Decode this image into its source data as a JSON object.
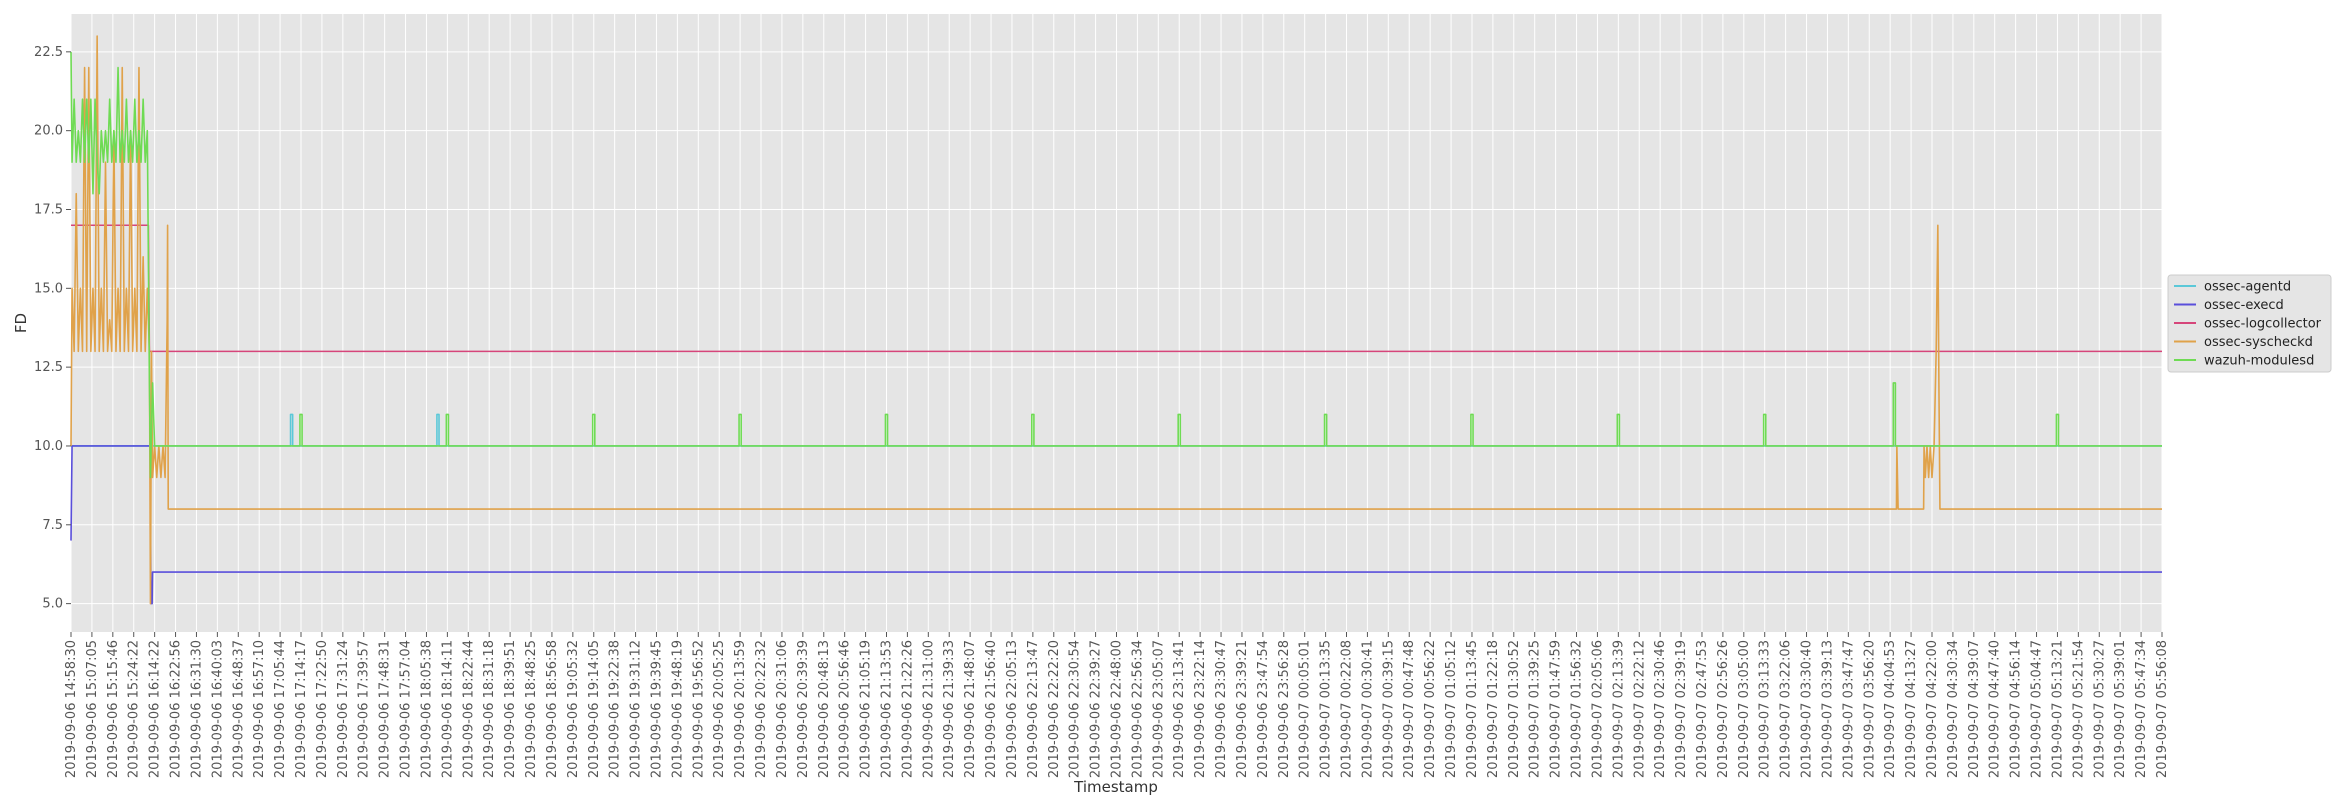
{
  "chart_data": {
    "type": "line",
    "title": "",
    "xlabel": "Timestamp",
    "ylabel": "FD",
    "ylim": [
      4.1,
      23.7
    ],
    "yticks": [
      5.0,
      7.5,
      10.0,
      12.5,
      15.0,
      17.5,
      20.0,
      22.5
    ],
    "ytick_labels": [
      "5.0",
      "7.5",
      "10.0",
      "12.5",
      "15.0",
      "17.5",
      "20.0",
      "22.5"
    ],
    "grid": true,
    "legend_position": "center-right",
    "x_tick_labels": [
      "2019-09-06 14:58:30",
      "2019-09-06 15:07:05",
      "2019-09-06 15:15:46",
      "2019-09-06 15:24:22",
      "2019-09-06 16:14:22",
      "2019-09-06 16:22:56",
      "2019-09-06 16:31:30",
      "2019-09-06 16:40:03",
      "2019-09-06 16:48:37",
      "2019-09-06 16:57:10",
      "2019-09-06 17:05:44",
      "2019-09-06 17:14:17",
      "2019-09-06 17:22:50",
      "2019-09-06 17:31:24",
      "2019-09-06 17:39:57",
      "2019-09-06 17:48:31",
      "2019-09-06 17:57:04",
      "2019-09-06 18:05:38",
      "2019-09-06 18:14:11",
      "2019-09-06 18:22:44",
      "2019-09-06 18:31:18",
      "2019-09-06 18:39:51",
      "2019-09-06 18:48:25",
      "2019-09-06 18:56:58",
      "2019-09-06 19:05:32",
      "2019-09-06 19:14:05",
      "2019-09-06 19:22:38",
      "2019-09-06 19:31:12",
      "2019-09-06 19:39:45",
      "2019-09-06 19:48:19",
      "2019-09-06 19:56:52",
      "2019-09-06 20:05:25",
      "2019-09-06 20:13:59",
      "2019-09-06 20:22:32",
      "2019-09-06 20:31:06",
      "2019-09-06 20:39:39",
      "2019-09-06 20:48:13",
      "2019-09-06 20:56:46",
      "2019-09-06 21:05:19",
      "2019-09-06 21:13:53",
      "2019-09-06 21:22:26",
      "2019-09-06 21:31:00",
      "2019-09-06 21:39:33",
      "2019-09-06 21:48:07",
      "2019-09-06 21:56:40",
      "2019-09-06 22:05:13",
      "2019-09-06 22:13:47",
      "2019-09-06 22:22:20",
      "2019-09-06 22:30:54",
      "2019-09-06 22:39:27",
      "2019-09-06 22:48:00",
      "2019-09-06 22:56:34",
      "2019-09-06 23:05:07",
      "2019-09-06 23:13:41",
      "2019-09-06 23:22:14",
      "2019-09-06 23:30:47",
      "2019-09-06 23:39:21",
      "2019-09-06 23:47:54",
      "2019-09-06 23:56:28",
      "2019-09-07 00:05:01",
      "2019-09-07 00:13:35",
      "2019-09-07 00:22:08",
      "2019-09-07 00:30:41",
      "2019-09-07 00:39:15",
      "2019-09-07 00:47:48",
      "2019-09-07 00:56:22",
      "2019-09-07 01:05:12",
      "2019-09-07 01:13:45",
      "2019-09-07 01:22:18",
      "2019-09-07 01:30:52",
      "2019-09-07 01:39:25",
      "2019-09-07 01:47:59",
      "2019-09-07 01:56:32",
      "2019-09-07 02:05:06",
      "2019-09-07 02:13:39",
      "2019-09-07 02:22:12",
      "2019-09-07 02:30:46",
      "2019-09-07 02:39:19",
      "2019-09-07 02:47:53",
      "2019-09-07 02:56:26",
      "2019-09-07 03:05:00",
      "2019-09-07 03:13:33",
      "2019-09-07 03:22:06",
      "2019-09-07 03:30:40",
      "2019-09-07 03:39:13",
      "2019-09-07 03:47:47",
      "2019-09-07 03:56:20",
      "2019-09-07 04:04:53",
      "2019-09-07 04:13:27",
      "2019-09-07 04:22:00",
      "2019-09-07 04:30:34",
      "2019-09-07 04:39:07",
      "2019-09-07 04:47:40",
      "2019-09-07 04:56:14",
      "2019-09-07 05:04:47",
      "2019-09-07 05:13:21",
      "2019-09-07 05:21:54",
      "2019-09-07 05:30:27",
      "2019-09-07 05:39:01",
      "2019-09-07 05:47:34",
      "2019-09-07 05:56:08"
    ],
    "x_index_range": [
      0,
      100
    ],
    "series": [
      {
        "name": "ossec-agentd",
        "color": "#5bc8d8",
        "points": [
          [
            0,
            10
          ],
          [
            10.5,
            10
          ],
          [
            10.5,
            11
          ],
          [
            10.6,
            11
          ],
          [
            10.6,
            10
          ],
          [
            17.5,
            10
          ],
          [
            17.5,
            11
          ],
          [
            17.6,
            11
          ],
          [
            17.6,
            10
          ],
          [
            100,
            10
          ]
        ]
      },
      {
        "name": "ossec-execd",
        "color": "#5a4fdb",
        "points": [
          [
            0,
            7
          ],
          [
            0.05,
            10
          ],
          [
            3.8,
            10
          ],
          [
            3.82,
            5
          ],
          [
            3.88,
            5
          ],
          [
            3.9,
            6
          ],
          [
            100,
            6
          ]
        ]
      },
      {
        "name": "ossec-logcollector",
        "color": "#d6457a",
        "points": [
          [
            0,
            17
          ],
          [
            3.7,
            17
          ],
          [
            3.75,
            13
          ],
          [
            100,
            13
          ]
        ]
      },
      {
        "name": "ossec-syscheckd",
        "color": "#e0a24a",
        "points": [
          [
            0,
            10
          ],
          [
            0.05,
            15
          ],
          [
            0.15,
            13
          ],
          [
            0.25,
            18
          ],
          [
            0.35,
            13
          ],
          [
            0.45,
            15
          ],
          [
            0.55,
            13
          ],
          [
            0.65,
            22
          ],
          [
            0.75,
            13
          ],
          [
            0.85,
            22
          ],
          [
            0.95,
            13
          ],
          [
            1.05,
            15
          ],
          [
            1.15,
            13
          ],
          [
            1.25,
            23
          ],
          [
            1.35,
            13
          ],
          [
            1.45,
            15
          ],
          [
            1.55,
            13
          ],
          [
            1.65,
            19
          ],
          [
            1.75,
            13
          ],
          [
            1.85,
            14
          ],
          [
            1.95,
            13
          ],
          [
            2.05,
            20
          ],
          [
            2.15,
            13
          ],
          [
            2.25,
            15
          ],
          [
            2.35,
            13
          ],
          [
            2.45,
            22
          ],
          [
            2.55,
            13
          ],
          [
            2.65,
            15
          ],
          [
            2.75,
            13
          ],
          [
            2.85,
            20
          ],
          [
            2.95,
            13
          ],
          [
            3.05,
            15
          ],
          [
            3.15,
            13
          ],
          [
            3.25,
            22
          ],
          [
            3.35,
            13
          ],
          [
            3.45,
            16
          ],
          [
            3.55,
            13
          ],
          [
            3.65,
            15
          ],
          [
            3.75,
            13
          ],
          [
            3.8,
            5
          ],
          [
            3.85,
            13
          ],
          [
            3.9,
            9
          ],
          [
            4.0,
            10
          ],
          [
            4.1,
            9
          ],
          [
            4.2,
            10
          ],
          [
            4.3,
            9
          ],
          [
            4.4,
            10
          ],
          [
            4.5,
            9
          ],
          [
            4.6,
            14
          ],
          [
            4.62,
            17
          ],
          [
            4.65,
            8
          ],
          [
            4.7,
            8
          ],
          [
            87.3,
            8
          ],
          [
            87.32,
            10
          ],
          [
            87.38,
            8
          ],
          [
            87.5,
            8
          ],
          [
            88.6,
            8
          ],
          [
            88.62,
            10
          ],
          [
            88.68,
            9
          ],
          [
            88.76,
            10
          ],
          [
            88.84,
            9
          ],
          [
            88.92,
            10
          ],
          [
            89.0,
            9
          ],
          [
            89.1,
            10
          ],
          [
            89.2,
            13
          ],
          [
            89.28,
            17
          ],
          [
            89.33,
            12
          ],
          [
            89.38,
            8
          ],
          [
            100,
            8
          ]
        ]
      },
      {
        "name": "wazuh-modulesd",
        "color": "#6fdb54",
        "points": [
          [
            0,
            22.5
          ],
          [
            0.05,
            19
          ],
          [
            0.15,
            21
          ],
          [
            0.25,
            19
          ],
          [
            0.35,
            20
          ],
          [
            0.45,
            19
          ],
          [
            0.55,
            21
          ],
          [
            0.65,
            19
          ],
          [
            0.75,
            21
          ],
          [
            0.85,
            19
          ],
          [
            0.95,
            21
          ],
          [
            1.05,
            18
          ],
          [
            1.15,
            21
          ],
          [
            1.25,
            19
          ],
          [
            1.35,
            18
          ],
          [
            1.45,
            20
          ],
          [
            1.55,
            19
          ],
          [
            1.65,
            20
          ],
          [
            1.75,
            19
          ],
          [
            1.85,
            21
          ],
          [
            1.95,
            19
          ],
          [
            2.05,
            20
          ],
          [
            2.15,
            19
          ],
          [
            2.25,
            22
          ],
          [
            2.35,
            19
          ],
          [
            2.45,
            20
          ],
          [
            2.55,
            19
          ],
          [
            2.65,
            21
          ],
          [
            2.75,
            19
          ],
          [
            2.85,
            20
          ],
          [
            2.95,
            19
          ],
          [
            3.05,
            21
          ],
          [
            3.15,
            19
          ],
          [
            3.25,
            20
          ],
          [
            3.35,
            19
          ],
          [
            3.45,
            21
          ],
          [
            3.55,
            19
          ],
          [
            3.65,
            20
          ],
          [
            3.75,
            12
          ],
          [
            3.8,
            9
          ],
          [
            3.9,
            12
          ],
          [
            4.0,
            10
          ],
          [
            10.95,
            10
          ],
          [
            10.95,
            11
          ],
          [
            11.05,
            11
          ],
          [
            11.05,
            10
          ],
          [
            17.95,
            10
          ],
          [
            17.95,
            11
          ],
          [
            18.05,
            11
          ],
          [
            18.05,
            10
          ],
          [
            24.95,
            10
          ],
          [
            24.95,
            11
          ],
          [
            25.05,
            11
          ],
          [
            25.05,
            10
          ],
          [
            31.95,
            10
          ],
          [
            31.95,
            11
          ],
          [
            32.05,
            11
          ],
          [
            32.05,
            10
          ],
          [
            38.95,
            10
          ],
          [
            38.95,
            11
          ],
          [
            39.05,
            11
          ],
          [
            39.05,
            10
          ],
          [
            45.95,
            10
          ],
          [
            45.95,
            11
          ],
          [
            46.05,
            11
          ],
          [
            46.05,
            10
          ],
          [
            52.95,
            10
          ],
          [
            52.95,
            11
          ],
          [
            53.05,
            11
          ],
          [
            53.05,
            10
          ],
          [
            59.95,
            10
          ],
          [
            59.95,
            11
          ],
          [
            60.05,
            11
          ],
          [
            60.05,
            10
          ],
          [
            66.95,
            10
          ],
          [
            66.95,
            11
          ],
          [
            67.05,
            11
          ],
          [
            67.05,
            10
          ],
          [
            73.95,
            10
          ],
          [
            73.95,
            11
          ],
          [
            74.05,
            11
          ],
          [
            74.05,
            10
          ],
          [
            80.95,
            10
          ],
          [
            80.95,
            11
          ],
          [
            81.05,
            11
          ],
          [
            81.05,
            10
          ],
          [
            87.15,
            10
          ],
          [
            87.15,
            12
          ],
          [
            87.25,
            12
          ],
          [
            87.25,
            10
          ],
          [
            94.95,
            10
          ],
          [
            94.95,
            11
          ],
          [
            95.05,
            11
          ],
          [
            95.05,
            10
          ],
          [
            100,
            10
          ]
        ]
      }
    ]
  }
}
